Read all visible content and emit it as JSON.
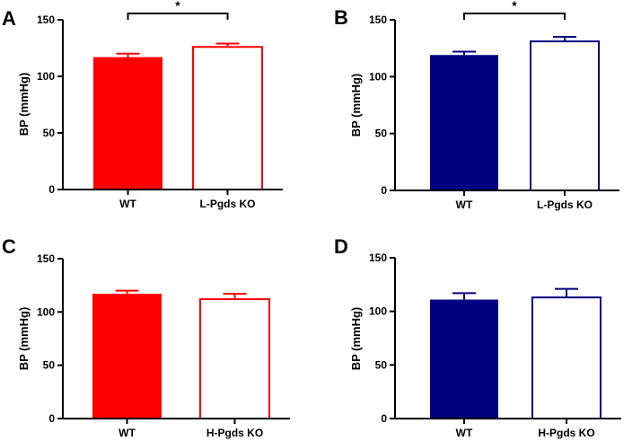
{
  "chart_data": [
    {
      "panel": "A",
      "type": "bar",
      "ylabel": "BP (mmHg)",
      "ylim": [
        0,
        150
      ],
      "yticks": [
        0,
        50,
        100,
        150
      ],
      "categories": [
        "WT",
        "L-Pgds KO"
      ],
      "values": [
        117,
        126
      ],
      "errors": [
        3,
        3
      ],
      "fill": [
        "#ff0000",
        "#ffffff"
      ],
      "stroke": "#ff0000",
      "significance": "*"
    },
    {
      "panel": "B",
      "type": "bar",
      "ylabel": "BP (mmHg)",
      "ylim": [
        0,
        150
      ],
      "yticks": [
        0,
        50,
        100,
        150
      ],
      "categories": [
        "WT",
        "L-Pgds KO"
      ],
      "values": [
        119,
        131
      ],
      "errors": [
        3,
        4
      ],
      "fill": [
        "#00007f",
        "#ffffff"
      ],
      "stroke": "#00007f",
      "significance": "*"
    },
    {
      "panel": "C",
      "type": "bar",
      "ylabel": "BP (mmHg)",
      "ylim": [
        0,
        150
      ],
      "yticks": [
        0,
        50,
        100,
        150
      ],
      "categories": [
        "WT",
        "H-Pgds KO"
      ],
      "values": [
        117,
        112
      ],
      "errors": [
        3,
        5
      ],
      "fill": [
        "#ff0000",
        "#ffffff"
      ],
      "stroke": "#ff0000",
      "significance": ""
    },
    {
      "panel": "D",
      "type": "bar",
      "ylabel": "BP (mmHg)",
      "ylim": [
        0,
        150
      ],
      "yticks": [
        0,
        50,
        100,
        150
      ],
      "categories": [
        "WT",
        "H-Pgds KO"
      ],
      "values": [
        111,
        113
      ],
      "errors": [
        6,
        8
      ],
      "fill": [
        "#00007f",
        "#ffffff"
      ],
      "stroke": "#00007f",
      "significance": ""
    }
  ]
}
